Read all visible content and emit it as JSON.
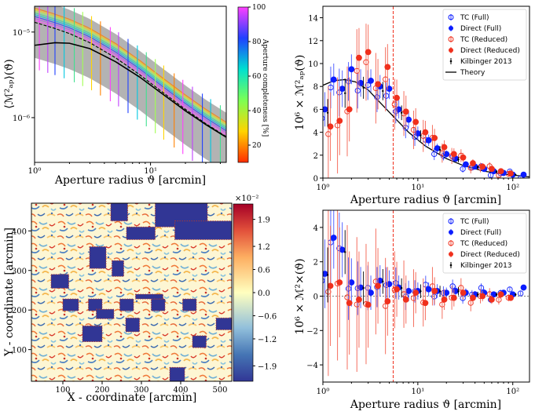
{
  "chart_data": [
    {
      "type": "line",
      "panel": "top-left",
      "title": "",
      "xlabel": "Aperture radius ϑ [arcmin]",
      "ylabel": "⟨M²ap⟩(ϑ)",
      "xscale": "log",
      "yscale": "log",
      "xlim": [
        1,
        45
      ],
      "ylim": [
        3e-07,
        2e-05
      ],
      "xticks": [
        {
          "v": 1,
          "label": "10⁰"
        },
        {
          "v": 10,
          "label": "10¹"
        }
      ],
      "yticks": [
        {
          "v": 1e-05,
          "label": "10⁻⁵"
        },
        {
          "v": 1e-06,
          "label": "10⁻⁶"
        }
      ],
      "colorbar": {
        "label": "Aperture completeness [%]",
        "ticks": [
          "100",
          "80",
          "60",
          "40",
          "20"
        ],
        "range": [
          10,
          100
        ]
      },
      "series": [
        {
          "name": "Theory",
          "x": [
            1,
            1.5,
            2,
            3,
            5,
            8,
            12,
            20,
            30,
            45
          ],
          "y": [
            7e-06,
            7.5e-06,
            7.4e-06,
            6.4e-06,
            4.5e-06,
            3e-06,
            2e-06,
            1.2e-06,
            8.3e-07,
            5.9e-07
          ]
        },
        {
          "name": "Full",
          "x": [
            1,
            1.5,
            2,
            3,
            5,
            8,
            12,
            20,
            30,
            45
          ],
          "y": [
            1.3e-05,
            1.1e-05,
            9.6e-06,
            7.5e-06,
            5e-06,
            3.2e-06,
            2.1e-06,
            1.25e-06,
            8.5e-07,
            6e-07
          ]
        }
      ]
    },
    {
      "type": "scatter",
      "panel": "top-right",
      "xlabel": "Aperture radius ϑ [arcmin]",
      "ylabel": "10⁶ × M²ap(ϑ)",
      "xscale": "log",
      "xlim": [
        1,
        150
      ],
      "ylim": [
        0,
        15
      ],
      "yticks": [
        0,
        2,
        4,
        6,
        8,
        10,
        12,
        14
      ],
      "xticks": [
        {
          "v": 1,
          "label": "10⁰"
        },
        {
          "v": 10,
          "label": "10¹"
        },
        {
          "v": 100,
          "label": "10²"
        }
      ],
      "vline": 5.5,
      "legend": [
        "TC (Full)",
        "Direct (Full)",
        "TC (Reduced)",
        "Direct (Reduced)",
        "Kilbinger 2013",
        "Theory"
      ],
      "theory": {
        "x": [
          1,
          1.3,
          1.7,
          2.2,
          3,
          4,
          5.5,
          8,
          12,
          20,
          30,
          50,
          80,
          150
        ],
        "y": [
          8.1,
          8.5,
          8.6,
          8.4,
          7.7,
          6.6,
          5.4,
          4.0,
          2.8,
          1.7,
          1.1,
          0.6,
          0.35,
          0.1
        ]
      },
      "series": [
        {
          "name": "Direct (Full)",
          "x": [
            1.05,
            1.3,
            1.6,
            2,
            2.5,
            3.2,
            4,
            5,
            6.3,
            8,
            10,
            13,
            16,
            20,
            25,
            32,
            40,
            50,
            63,
            80,
            100,
            130
          ],
          "y": [
            6.0,
            8.6,
            7.8,
            9.5,
            8.3,
            8.5,
            8.0,
            7.8,
            6.0,
            5.1,
            3.9,
            3.3,
            2.6,
            2.1,
            1.7,
            1.2,
            1.0,
            0.8,
            0.6,
            0.45,
            0.3,
            0.3
          ],
          "err": [
            1.5,
            1.4,
            1.6,
            1.3,
            1.2,
            1.0,
            1.0,
            0.9,
            0.8,
            0.7,
            0.6,
            0.5,
            0.4,
            0.3,
            0.3,
            0.25,
            0.2,
            0.2,
            0.15,
            0.15,
            0.1,
            0.1
          ]
        },
        {
          "name": "Direct (Reduced)",
          "x": [
            1.2,
            1.5,
            1.9,
            2.4,
            3,
            3.8,
            4.8,
            6,
            7.5,
            9.5,
            12,
            15,
            19,
            24,
            30,
            38,
            48,
            60,
            75,
            95
          ],
          "y": [
            4.5,
            5.0,
            6.0,
            10.5,
            11.0,
            8.2,
            9.7,
            7.0,
            5.8,
            4.9,
            4.0,
            3.5,
            2.7,
            2.1,
            1.8,
            1.3,
            1.0,
            0.8,
            0.6,
            0.4
          ],
          "err": [
            3.0,
            3.0,
            2.8,
            2.6,
            2.4,
            2.2,
            2.0,
            1.6,
            1.4,
            1.2,
            1.0,
            0.8,
            0.6,
            0.5,
            0.4,
            0.35,
            0.3,
            0.25,
            0.2,
            0.15
          ]
        }
      ]
    },
    {
      "type": "heatmap",
      "panel": "bottom-left",
      "xlabel": "X - coordinate [arcmin]",
      "ylabel": "Y - coordinate [arcmin]",
      "xlim": [
        20,
        530
      ],
      "ylim": [
        20,
        470
      ],
      "xticks": [
        100,
        200,
        300,
        400,
        500
      ],
      "yticks": [
        100,
        200,
        300,
        400
      ],
      "colorbar": {
        "scale_label": "×10⁻²",
        "ticks": [
          "1.9",
          "1.2",
          "0.6",
          "0.0",
          "-0.6",
          "-1.2",
          "-1.9"
        ],
        "range": [
          -2.3,
          2.3
        ]
      },
      "masked_regions": [
        {
          "x": [
            222,
            265
          ],
          "y": [
            425,
            470
          ]
        },
        {
          "x": [
            262,
            335
          ],
          "y": [
            378,
            410
          ]
        },
        {
          "x": [
            335,
            468
          ],
          "y": [
            410,
            470
          ]
        },
        {
          "x": [
            385,
            530
          ],
          "y": [
            378,
            425
          ]
        },
        {
          "x": [
            168,
            210
          ],
          "y": [
            305,
            360
          ]
        },
        {
          "x": [
            225,
            255
          ],
          "y": [
            285,
            325
          ]
        },
        {
          "x": [
            70,
            115
          ],
          "y": [
            255,
            290
          ]
        },
        {
          "x": [
            100,
            140
          ],
          "y": [
            198,
            228
          ]
        },
        {
          "x": [
            165,
            200
          ],
          "y": [
            198,
            228
          ]
        },
        {
          "x": [
            245,
            280
          ],
          "y": [
            198,
            228
          ]
        },
        {
          "x": [
            325,
            360
          ],
          "y": [
            198,
            228
          ]
        },
        {
          "x": [
            405,
            440
          ],
          "y": [
            198,
            228
          ]
        },
        {
          "x": [
            285,
            355
          ],
          "y": [
            228,
            240
          ]
        },
        {
          "x": [
            185,
            230
          ],
          "y": [
            178,
            202
          ]
        },
        {
          "x": [
            150,
            200
          ],
          "y": [
            120,
            160
          ]
        },
        {
          "x": [
            260,
            295
          ],
          "y": [
            145,
            180
          ]
        },
        {
          "x": [
            490,
            530
          ],
          "y": [
            150,
            180
          ]
        },
        {
          "x": [
            430,
            465
          ],
          "y": [
            105,
            135
          ]
        },
        {
          "x": [
            372,
            410
          ],
          "y": [
            20,
            55
          ]
        }
      ]
    },
    {
      "type": "scatter",
      "panel": "bottom-right",
      "xlabel": "Aperture radius ϑ [arcmin]",
      "ylabel": "10⁶ × M²×(ϑ)",
      "xscale": "log",
      "xlim": [
        1,
        150
      ],
      "ylim": [
        -5,
        5
      ],
      "yticks": [
        -4,
        -2,
        0,
        2,
        4
      ],
      "xticks": [
        {
          "v": 1,
          "label": "10⁰"
        },
        {
          "v": 10,
          "label": "10¹"
        },
        {
          "v": 100,
          "label": "10²"
        }
      ],
      "vline": 5.5,
      "legend": [
        "TC (Full)",
        "Direct (Full)",
        "TC (Reduced)",
        "Direct (Reduced)",
        "Kilbinger 2013"
      ],
      "series": [
        {
          "name": "Direct (Full)",
          "x": [
            1.05,
            1.3,
            1.6,
            2,
            2.5,
            3.2,
            4,
            5,
            6.3,
            8,
            10,
            13,
            16,
            20,
            25,
            32,
            40,
            50,
            63,
            80,
            100,
            130
          ],
          "y": [
            1.3,
            3.4,
            2.7,
            0.8,
            0.5,
            0.2,
            0.9,
            0.7,
            0.5,
            0.3,
            0.3,
            0.4,
            0.3,
            0.2,
            0.3,
            0.2,
            0.1,
            0.2,
            0.1,
            0.2,
            0.1,
            0.5
          ],
          "err": [
            2.0,
            1.8,
            1.6,
            1.4,
            1.2,
            1.0,
            0.9,
            0.8,
            0.7,
            0.6,
            0.5,
            0.4,
            0.4,
            0.3,
            0.3,
            0.25,
            0.2,
            0.2,
            0.15,
            0.15,
            0.1,
            0.1
          ]
        },
        {
          "name": "Direct (Reduced)",
          "x": [
            1.2,
            1.5,
            1.9,
            2.4,
            3,
            3.8,
            4.8,
            6,
            7.5,
            9.5,
            12,
            15,
            19,
            24,
            30,
            38,
            48,
            60,
            75,
            95
          ],
          "y": [
            0.6,
            0.8,
            -0.4,
            -0.2,
            -0.5,
            0.6,
            -0.3,
            0.4,
            -0.2,
            0.2,
            -0.4,
            0.3,
            -0.2,
            -0.1,
            0.2,
            -0.1,
            0.0,
            -0.2,
            0.1,
            -0.1
          ],
          "err": [
            3.5,
            3.2,
            3.0,
            2.8,
            2.5,
            2.2,
            2.0,
            1.6,
            1.4,
            1.2,
            1.0,
            0.8,
            0.6,
            0.5,
            0.4,
            0.35,
            0.3,
            0.25,
            0.2,
            0.15
          ]
        }
      ]
    }
  ],
  "labels": {
    "tl_xlabel": "Aperture radius ϑ [arcmin]",
    "tr_xlabel": "Aperture radius ϑ [arcmin]",
    "bl_xlabel": "X - coordinate [arcmin]",
    "bl_ylabel": "Y - coordinate [arcmin]",
    "br_xlabel": "Aperture radius ϑ [arcmin]",
    "cb1_label": "Aperture completeness [%]",
    "cb2_scale": "×10⁻²"
  }
}
